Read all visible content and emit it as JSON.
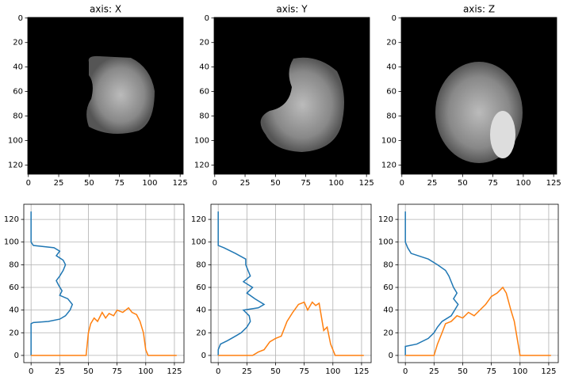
{
  "chart_data": [
    {
      "type": "image",
      "title": "axis: X",
      "xlim": [
        -0.5,
        127.5
      ],
      "ylim": [
        127.5,
        -0.5
      ],
      "xticks": [
        0,
        25,
        50,
        75,
        100,
        125
      ],
      "yticks": [
        0,
        20,
        40,
        60,
        80,
        100,
        120
      ]
    },
    {
      "type": "image",
      "title": "axis: Y",
      "xlim": [
        -0.5,
        127.5
      ],
      "ylim": [
        127.5,
        -0.5
      ],
      "xticks": [
        0,
        25,
        50,
        75,
        100,
        125
      ],
      "yticks": [
        0,
        20,
        40,
        60,
        80,
        100,
        120
      ]
    },
    {
      "type": "image",
      "title": "axis: Z",
      "xlim": [
        -0.5,
        127.5
      ],
      "ylim": [
        127.5,
        -0.5
      ],
      "xticks": [
        0,
        25,
        50,
        75,
        100,
        125
      ],
      "yticks": [
        0,
        20,
        40,
        60,
        80,
        100,
        120
      ]
    },
    {
      "type": "line",
      "xlim": [
        -6.35,
        133.35
      ],
      "ylim": [
        -6.35,
        133.35
      ],
      "xticks": [
        0,
        25,
        50,
        75,
        100,
        125
      ],
      "yticks": [
        0,
        20,
        40,
        60,
        80,
        100,
        120
      ],
      "grid": true,
      "series": [
        {
          "color": "#1f77b4",
          "x": [
            0,
            0,
            2,
            15,
            25,
            30,
            34,
            36,
            32,
            25,
            27,
            24,
            22,
            25,
            28,
            30,
            28,
            22,
            25,
            20,
            2,
            0,
            0
          ],
          "values": [
            0,
            28,
            29,
            30,
            32,
            35,
            40,
            45,
            50,
            53,
            57,
            62,
            66,
            70,
            75,
            80,
            84,
            88,
            92,
            95,
            97,
            100,
            127
          ]
        },
        {
          "color": "#ff7f0e",
          "x": [
            0,
            48,
            50,
            52,
            55,
            58,
            62,
            65,
            68,
            72,
            75,
            80,
            85,
            88,
            92,
            95,
            98,
            100,
            102,
            127
          ],
          "values": [
            0,
            0,
            20,
            28,
            33,
            30,
            38,
            33,
            37,
            35,
            40,
            38,
            42,
            38,
            36,
            30,
            20,
            5,
            0,
            0
          ]
        }
      ]
    },
    {
      "type": "line",
      "xlim": [
        -6.35,
        133.35
      ],
      "ylim": [
        -6.35,
        133.35
      ],
      "xticks": [
        0,
        25,
        50,
        75,
        100,
        125
      ],
      "yticks": [
        0,
        20,
        40,
        60,
        80,
        100,
        120
      ],
      "grid": true,
      "series": [
        {
          "color": "#1f77b4",
          "x": [
            0,
            0,
            2,
            8,
            15,
            20,
            25,
            28,
            27,
            22,
            35,
            40,
            32,
            25,
            30,
            22,
            28,
            26,
            24,
            24,
            15,
            5,
            0,
            0
          ],
          "values": [
            0,
            5,
            10,
            13,
            17,
            20,
            25,
            30,
            35,
            40,
            42,
            45,
            50,
            55,
            60,
            65,
            70,
            75,
            80,
            85,
            90,
            95,
            97,
            127
          ]
        },
        {
          "color": "#ff7f0e",
          "x": [
            0,
            30,
            35,
            40,
            45,
            50,
            55,
            60,
            65,
            70,
            75,
            78,
            82,
            85,
            88,
            92,
            95,
            98,
            102,
            127
          ],
          "values": [
            0,
            0,
            3,
            5,
            12,
            15,
            17,
            30,
            38,
            45,
            47,
            40,
            47,
            44,
            46,
            22,
            25,
            10,
            0,
            0
          ]
        }
      ]
    },
    {
      "type": "line",
      "xlim": [
        -6.35,
        133.35
      ],
      "ylim": [
        -6.35,
        133.35
      ],
      "xticks": [
        0,
        25,
        50,
        75,
        100,
        125
      ],
      "yticks": [
        0,
        20,
        40,
        60,
        80,
        100,
        120
      ],
      "grid": true,
      "series": [
        {
          "color": "#1f77b4",
          "x": [
            0,
            0,
            10,
            20,
            25,
            28,
            32,
            40,
            43,
            46,
            42,
            45,
            42,
            40,
            38,
            35,
            28,
            20,
            5,
            2,
            0,
            0
          ],
          "values": [
            0,
            8,
            10,
            15,
            20,
            25,
            30,
            35,
            40,
            45,
            50,
            55,
            60,
            65,
            70,
            75,
            80,
            85,
            90,
            95,
            100,
            127
          ]
        },
        {
          "color": "#ff7f0e",
          "x": [
            0,
            25,
            28,
            32,
            35,
            40,
            45,
            50,
            55,
            60,
            65,
            70,
            75,
            80,
            85,
            88,
            92,
            95,
            100,
            127
          ],
          "values": [
            0,
            0,
            10,
            20,
            28,
            30,
            35,
            33,
            38,
            35,
            40,
            45,
            52,
            55,
            60,
            55,
            40,
            30,
            0,
            0
          ]
        }
      ]
    }
  ]
}
